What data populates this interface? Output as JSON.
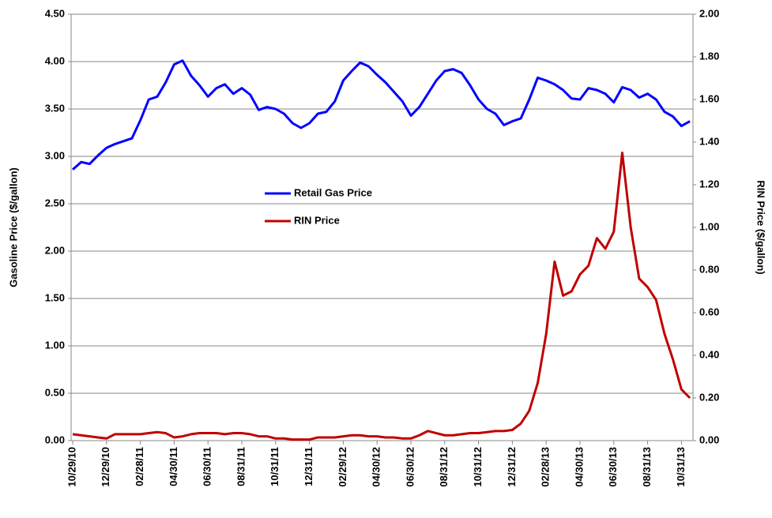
{
  "chart_data": {
    "type": "line",
    "y_label": "Gasoline Price ($/gallon)",
    "y2_label": "RIN Price ($/gallon)",
    "categories": [
      "10/29/10",
      null,
      null,
      null,
      "12/29/10",
      null,
      null,
      null,
      "02/28/11",
      null,
      null,
      null,
      "04/30/11",
      null,
      null,
      null,
      "06/30/11",
      null,
      null,
      null,
      "08/31/11",
      null,
      null,
      null,
      "10/31/11",
      null,
      null,
      null,
      "12/31/11",
      null,
      null,
      null,
      "02/29/12",
      null,
      null,
      null,
      "04/30/12",
      null,
      null,
      null,
      "06/30/12",
      null,
      null,
      null,
      "08/31/12",
      null,
      null,
      null,
      "10/31/12",
      null,
      null,
      null,
      "12/31/12",
      null,
      null,
      null,
      "02/28/13",
      null,
      null,
      null,
      "04/30/13",
      null,
      null,
      null,
      "06/30/13",
      null,
      null,
      null,
      "08/31/13",
      null,
      null,
      null,
      "10/31/13",
      null
    ],
    "series": [
      {
        "name": "Retail Gas Price",
        "color": "#0000ff",
        "values": [
          2.86,
          2.94,
          2.92,
          3.01,
          3.09,
          3.13,
          3.16,
          3.19,
          3.38,
          3.6,
          3.63,
          3.78,
          3.97,
          4.01,
          3.85,
          3.75,
          3.63,
          3.72,
          3.76,
          3.66,
          3.72,
          3.65,
          3.49,
          3.52,
          3.5,
          3.45,
          3.35,
          3.3,
          3.35,
          3.45,
          3.47,
          3.58,
          3.8,
          3.9,
          3.99,
          3.95,
          3.86,
          3.78,
          3.68,
          3.58,
          3.43,
          3.52,
          3.66,
          3.8,
          3.9,
          3.92,
          3.88,
          3.75,
          3.6,
          3.5,
          3.45,
          3.33,
          3.37,
          3.4,
          3.6,
          3.83,
          3.8,
          3.76,
          3.7,
          3.61,
          3.6,
          3.72,
          3.7,
          3.66,
          3.57,
          3.73,
          3.7,
          3.62,
          3.66,
          3.6,
          3.47,
          3.42,
          3.32,
          3.37
        ]
      },
      {
        "name": "RIN Price",
        "color": "#c00000",
        "axis": "y2",
        "values": [
          0.03,
          0.025,
          0.02,
          0.015,
          0.01,
          0.03,
          0.03,
          0.03,
          0.03,
          0.035,
          0.04,
          0.035,
          0.015,
          0.02,
          0.03,
          0.035,
          0.035,
          0.035,
          0.03,
          0.035,
          0.035,
          0.03,
          0.02,
          0.02,
          0.01,
          0.01,
          0.005,
          0.005,
          0.005,
          0.015,
          0.015,
          0.015,
          0.02,
          0.025,
          0.025,
          0.02,
          0.02,
          0.015,
          0.015,
          0.01,
          0.01,
          0.025,
          0.045,
          0.035,
          0.025,
          0.025,
          0.03,
          0.035,
          0.035,
          0.04,
          0.045,
          0.045,
          0.05,
          0.08,
          0.14,
          0.27,
          0.5,
          0.84,
          0.68,
          0.7,
          0.78,
          0.82,
          0.95,
          0.9,
          0.98,
          1.35,
          1.0,
          0.76,
          0.72,
          0.66,
          0.5,
          0.38,
          0.24,
          0.2
        ]
      }
    ],
    "ylim": [
      0,
      4.5
    ],
    "yticks": [
      {
        "value": 0,
        "label": "0.00"
      },
      {
        "value": 0.5,
        "label": "0.50"
      },
      {
        "value": 1,
        "label": "1.00"
      },
      {
        "value": 1.5,
        "label": "1.50"
      },
      {
        "value": 2,
        "label": "2.00"
      },
      {
        "value": 2.5,
        "label": "2.50"
      },
      {
        "value": 3,
        "label": "3.00"
      },
      {
        "value": 3.5,
        "label": "3.50"
      },
      {
        "value": 4,
        "label": "4.00"
      },
      {
        "value": 4.5,
        "label": "4.50"
      }
    ],
    "y2lim": [
      0,
      2
    ],
    "y2ticks": [
      {
        "value": 0,
        "label": "0.00"
      },
      {
        "value": 0.2,
        "label": "0.20"
      },
      {
        "value": 0.4,
        "label": "0.40"
      },
      {
        "value": 0.6,
        "label": "0.60"
      },
      {
        "value": 0.8,
        "label": "0.80"
      },
      {
        "value": 1,
        "label": "1.00"
      },
      {
        "value": 1.2,
        "label": "1.20"
      },
      {
        "value": 1.4,
        "label": "1.40"
      },
      {
        "value": 1.6,
        "label": "1.60"
      },
      {
        "value": 1.8,
        "label": "1.80"
      },
      {
        "value": 2,
        "label": "2.00"
      }
    ],
    "grid": true
  }
}
